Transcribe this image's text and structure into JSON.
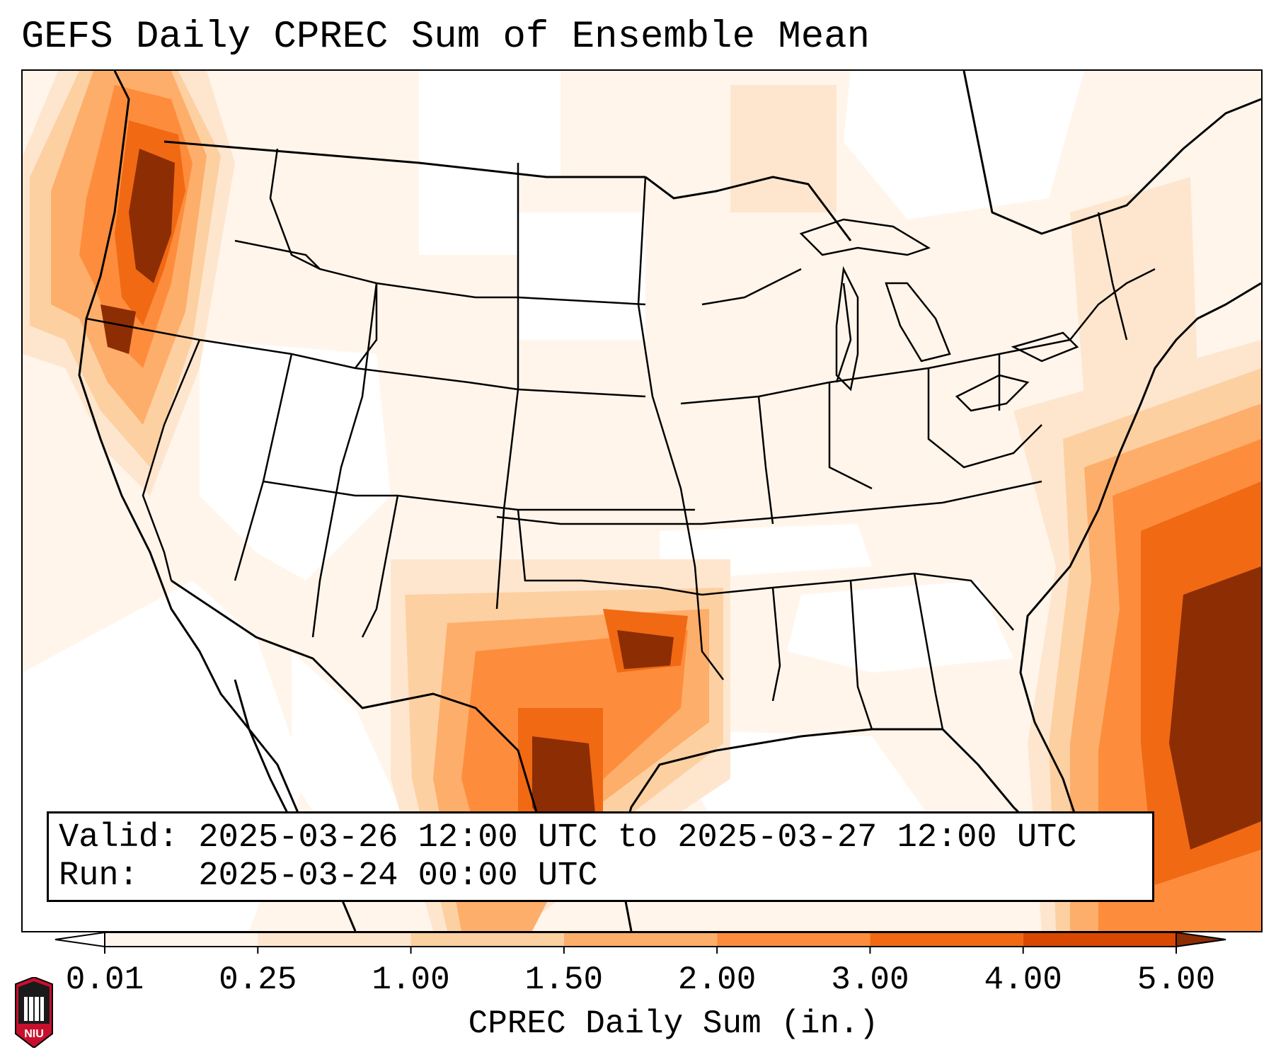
{
  "title": "GEFS Daily CPREC Sum of Ensemble Mean",
  "info": {
    "valid_line": "Valid: 2025-03-26 12:00 UTC to 2025-03-27 12:00 UTC",
    "run_line": "Run:   2025-03-24 00:00 UTC"
  },
  "colorbar": {
    "label": "CPREC Daily Sum (in.)",
    "ticks": [
      "0.01",
      "0.25",
      "1.00",
      "1.50",
      "2.00",
      "3.00",
      "4.00",
      "5.00"
    ],
    "colors": [
      "#fff5eb",
      "#fee6ce",
      "#fdd0a2",
      "#fdae6b",
      "#fd8d3c",
      "#f16913",
      "#d94801",
      "#8c2d04"
    ],
    "extend": "both"
  },
  "logo": {
    "text": "NIU"
  }
}
